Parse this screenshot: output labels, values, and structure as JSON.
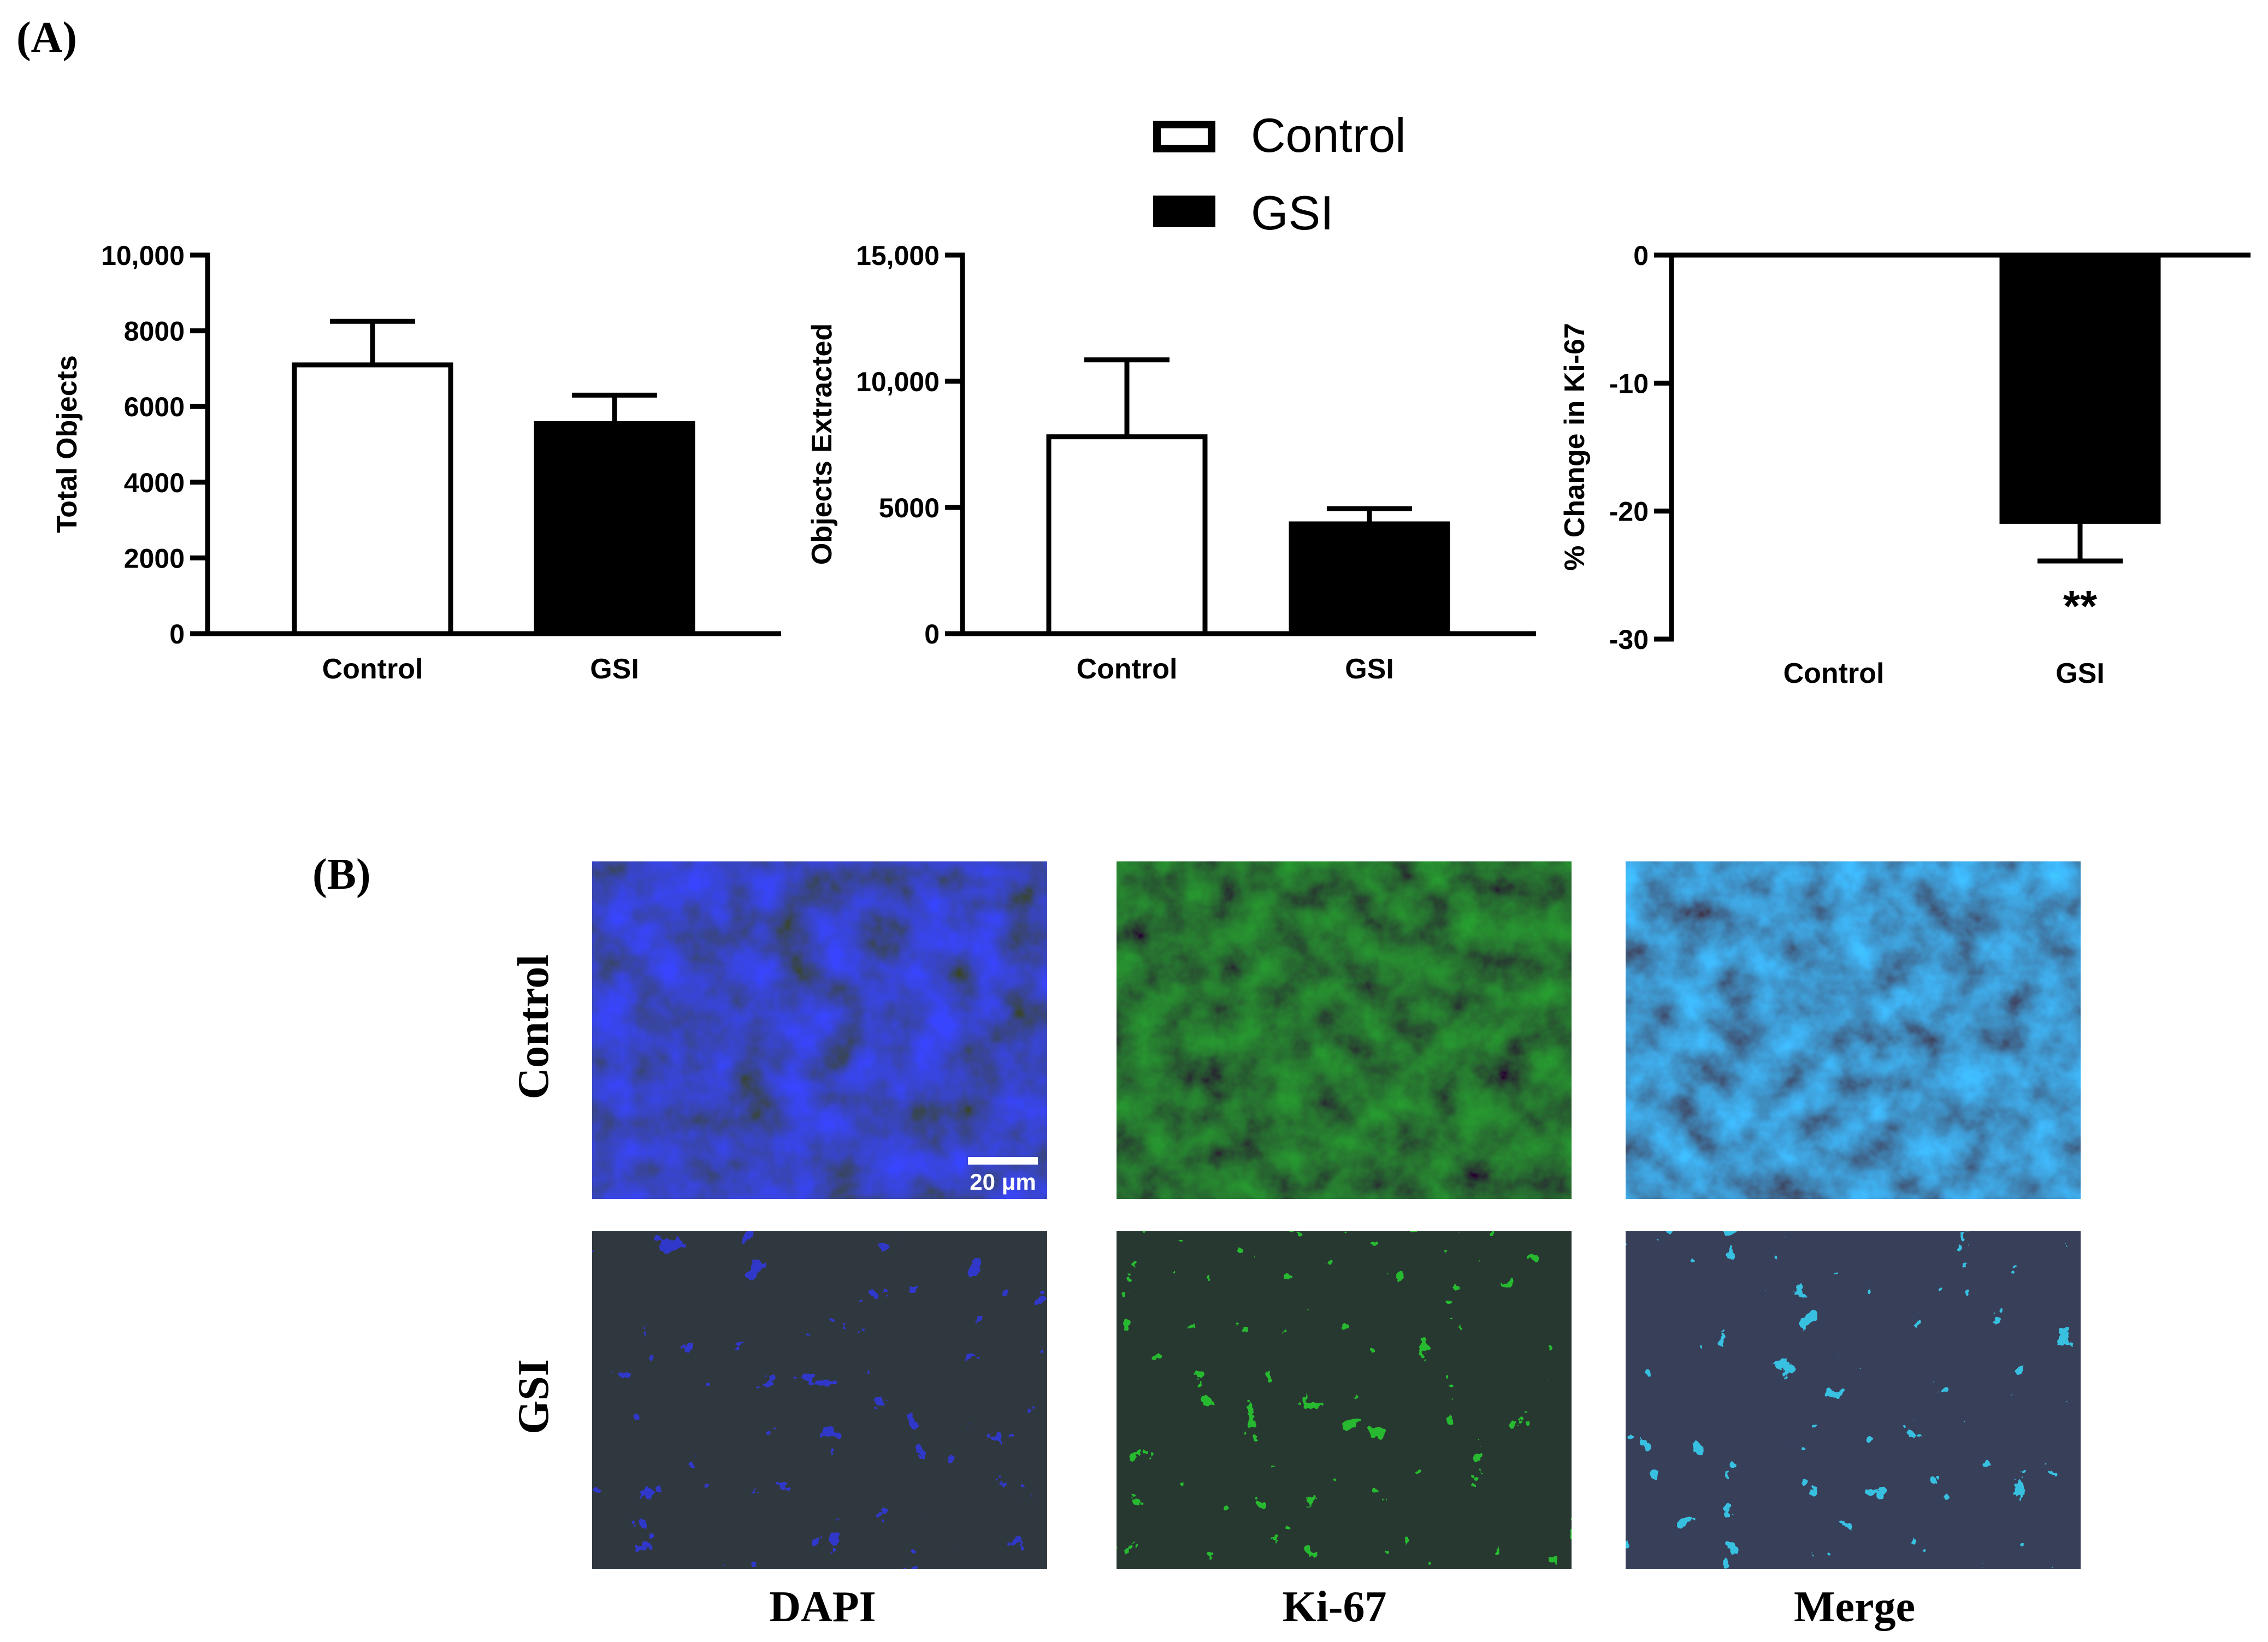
{
  "figure": {
    "panel_a_label": "(A)",
    "panel_b_label": "(B)"
  },
  "legend": {
    "placement": "top-center",
    "entries": [
      {
        "name": "Control",
        "fill": "#ffffff",
        "stroke": "#000000"
      },
      {
        "name": "GSI",
        "fill": "#000000",
        "stroke": "#000000"
      }
    ]
  },
  "chart_data": [
    {
      "type": "bar",
      "ylabel": "Total Objects",
      "categories": [
        "Control",
        "GSI"
      ],
      "values": [
        7100,
        5550
      ],
      "errors": [
        1150,
        750
      ],
      "ylim": [
        0,
        10000
      ],
      "yticks": [
        0,
        2000,
        4000,
        6000,
        8000,
        10000
      ],
      "ytick_labels": [
        "0",
        "2000",
        "4000",
        "6000",
        "8000",
        "10,000"
      ],
      "grid": false
    },
    {
      "type": "bar",
      "ylabel": "Objects Extracted",
      "categories": [
        "Control",
        "GSI"
      ],
      "values": [
        7800,
        4350
      ],
      "errors": [
        3050,
        600
      ],
      "ylim": [
        0,
        15000
      ],
      "yticks": [
        0,
        5000,
        10000,
        15000
      ],
      "ytick_labels": [
        "0",
        "5000",
        "10,000",
        "15,000"
      ],
      "grid": false
    },
    {
      "type": "bar",
      "ylabel": "% Change in Ki-67",
      "categories": [
        "Control",
        "GSI"
      ],
      "values": [
        0,
        -20.8
      ],
      "errors": [
        0,
        3.1
      ],
      "ylim": [
        -30,
        0
      ],
      "yticks": [
        -30,
        -20,
        -10,
        0
      ],
      "ytick_labels": [
        "-30",
        "-20",
        "-10",
        "0"
      ],
      "annotations": [
        {
          "category": "GSI",
          "text": "**"
        }
      ],
      "grid": false
    }
  ],
  "micrographs": {
    "rows": [
      "Control",
      "GSI"
    ],
    "columns": [
      "DAPI",
      "Ki-67",
      "Merge"
    ],
    "scale_bar": "20 μm",
    "channel_colors": {
      "DAPI": "#1a24d8",
      "Ki-67": "#2aa02a",
      "Merge": "#3a6be0"
    }
  }
}
